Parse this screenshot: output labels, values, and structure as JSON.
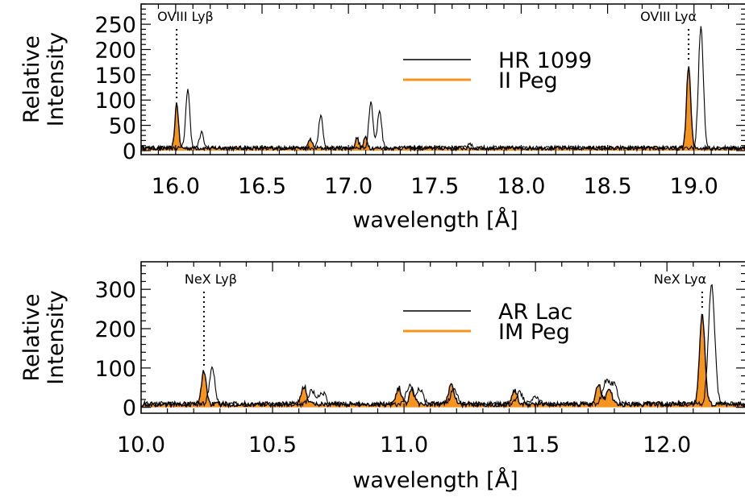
{
  "colors": {
    "black": "#000000",
    "orange": "#f7941d"
  },
  "chart_data": [
    {
      "type": "line",
      "xlabel": "wavelength [Å]",
      "ylabel": "Relative\nIntensity",
      "xlim": [
        15.8,
        19.3
      ],
      "ylim": [
        -8,
        290
      ],
      "xticks": [
        16.0,
        16.5,
        17.0,
        17.5,
        18.0,
        18.5,
        19.0
      ],
      "xtick_labels": [
        "16.0",
        "16.5",
        "17.0",
        "17.5",
        "18.0",
        "18.5",
        "19.0"
      ],
      "yticks": [
        0,
        50,
        100,
        150,
        200,
        250
      ],
      "ytick_labels": [
        "0",
        "50",
        "100",
        "150",
        "200",
        "250"
      ],
      "lines": [
        {
          "label": "OVIII  Lyβ",
          "x": 16.006
        },
        {
          "label": "OVIII  Lyα",
          "x": 18.969
        }
      ],
      "series": [
        {
          "name": "HR 1099",
          "style": "line",
          "color": "#000000",
          "baseline": 5,
          "peaks": [
            [
              16.07,
              115,
              0.012
            ],
            [
              16.15,
              30,
              0.012
            ],
            [
              16.84,
              63,
              0.012
            ],
            [
              17.13,
              92,
              0.012
            ],
            [
              17.18,
              75,
              0.012
            ],
            [
              17.7,
              10,
              0.012
            ],
            [
              19.04,
              240,
              0.014
            ]
          ]
        },
        {
          "name": "II Peg",
          "style": "filled",
          "color": "#f7941d",
          "baseline": 5,
          "peaks": [
            [
              16.006,
              90,
              0.01
            ],
            [
              16.78,
              18,
              0.01
            ],
            [
              17.05,
              20,
              0.01
            ],
            [
              17.1,
              22,
              0.01
            ],
            [
              18.969,
              162,
              0.012
            ]
          ]
        }
      ],
      "legend": "top-center"
    },
    {
      "type": "line",
      "xlabel": "wavelength [Å]",
      "ylabel": "Relative\nIntensity",
      "xlim": [
        10.0,
        12.3
      ],
      "ylim": [
        -15,
        370
      ],
      "xticks": [
        10.0,
        10.5,
        11.0,
        11.5,
        12.0
      ],
      "xtick_labels": [
        "10.0",
        "10.5",
        "11.0",
        "11.5",
        "12.0"
      ],
      "yticks": [
        0,
        100,
        200,
        300
      ],
      "ytick_labels": [
        "0",
        "100",
        "200",
        "300"
      ],
      "lines": [
        {
          "label": "NeX  Lyβ",
          "x": 10.239
        },
        {
          "label": "NeX  Lyα",
          "x": 12.134
        }
      ],
      "series": [
        {
          "name": "AR Lac",
          "style": "line",
          "color": "#000000",
          "baseline": 8,
          "peaks": [
            [
              10.27,
              95,
              0.01
            ],
            [
              10.65,
              35,
              0.012
            ],
            [
              10.69,
              30,
              0.012
            ],
            [
              11.02,
              45,
              0.012
            ],
            [
              11.06,
              38,
              0.012
            ],
            [
              11.19,
              40,
              0.012
            ],
            [
              11.44,
              30,
              0.012
            ],
            [
              11.5,
              18,
              0.012
            ],
            [
              11.77,
              60,
              0.014
            ],
            [
              11.8,
              45,
              0.012
            ],
            [
              12.17,
              305,
              0.012
            ]
          ]
        },
        {
          "name": "IM Peg",
          "style": "filled",
          "color": "#f7941d",
          "baseline": 8,
          "peaks": [
            [
              10.239,
              85,
              0.009
            ],
            [
              10.62,
              45,
              0.01
            ],
            [
              10.98,
              42,
              0.01
            ],
            [
              11.03,
              38,
              0.01
            ],
            [
              11.18,
              55,
              0.01
            ],
            [
              11.42,
              35,
              0.01
            ],
            [
              11.74,
              50,
              0.01
            ],
            [
              11.78,
              42,
              0.01
            ],
            [
              12.134,
              230,
              0.01
            ]
          ]
        }
      ],
      "legend": "top-center"
    }
  ]
}
